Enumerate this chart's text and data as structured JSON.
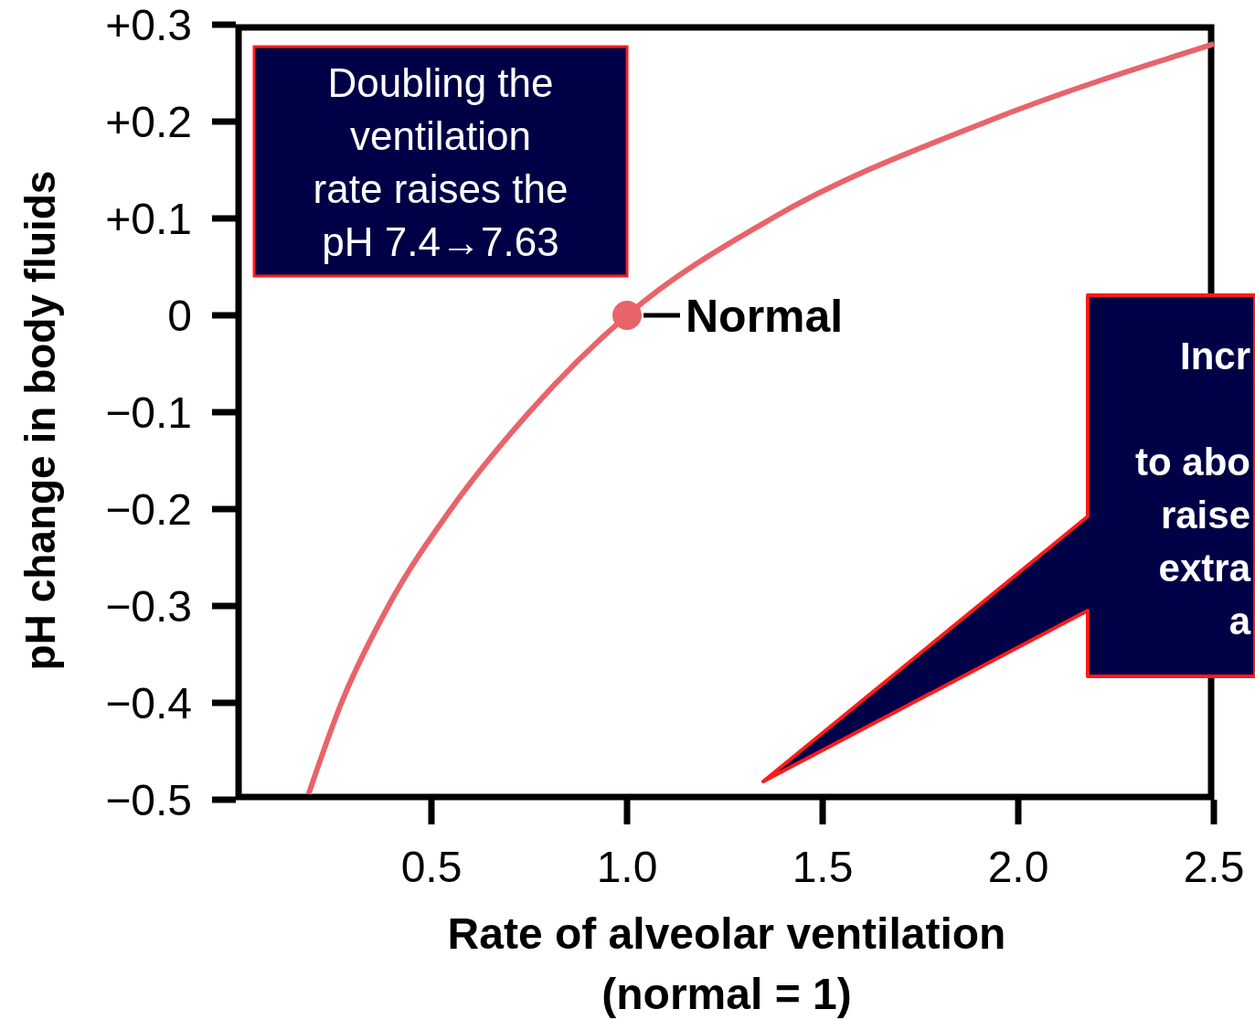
{
  "chart_data": {
    "type": "line",
    "xlabel": "Rate of alveolar ventilation\n(normal = 1)",
    "ylabel": "pH change in body fluids",
    "xlim": [
      0,
      2.5
    ],
    "xticks": [
      0.5,
      {
        "value": 1,
        "label": "1.0"
      },
      1.5,
      {
        "value": 2,
        "label": "2.0"
      },
      2.5
    ],
    "ylim": [
      -0.5,
      0.3
    ],
    "yticks": [
      {
        "value": 0.3,
        "label": "+0.3"
      },
      {
        "value": 0.2,
        "label": "+0.2"
      },
      {
        "value": 0.1,
        "label": "+0.1"
      },
      0,
      {
        "value": -0.1,
        "label": "−0.1"
      },
      {
        "value": -0.2,
        "label": "−0.2"
      },
      {
        "value": -0.3,
        "label": "−0.3"
      },
      {
        "value": -0.4,
        "label": "−0.4"
      },
      {
        "value": -0.5,
        "label": "−0.5"
      }
    ],
    "grid": false,
    "series": [
      {
        "color": "#e8646a",
        "marker": "none",
        "x": [
          0.186,
          0.27,
          0.39,
          0.55,
          0.75,
          1.0,
          1.37,
          1.92,
          2.5
        ],
        "values": [
          -0.494,
          -0.4,
          -0.3,
          -0.2,
          -0.1,
          0,
          0.1,
          0.2,
          0.28
        ]
      },
      {
        "type": "scatter",
        "color": "#e8646a",
        "marker": "circle",
        "x": [
          1.0
        ],
        "values": [
          0
        ]
      }
    ],
    "annotations": [
      "Doubling the\nventilation\nrate raises the\npH 7.4→7.63",
      {
        "text": "Normal",
        "x": 1.0,
        "y": 0
      },
      "Incr\n\nto abo\nraise\nextra\na"
    ]
  }
}
